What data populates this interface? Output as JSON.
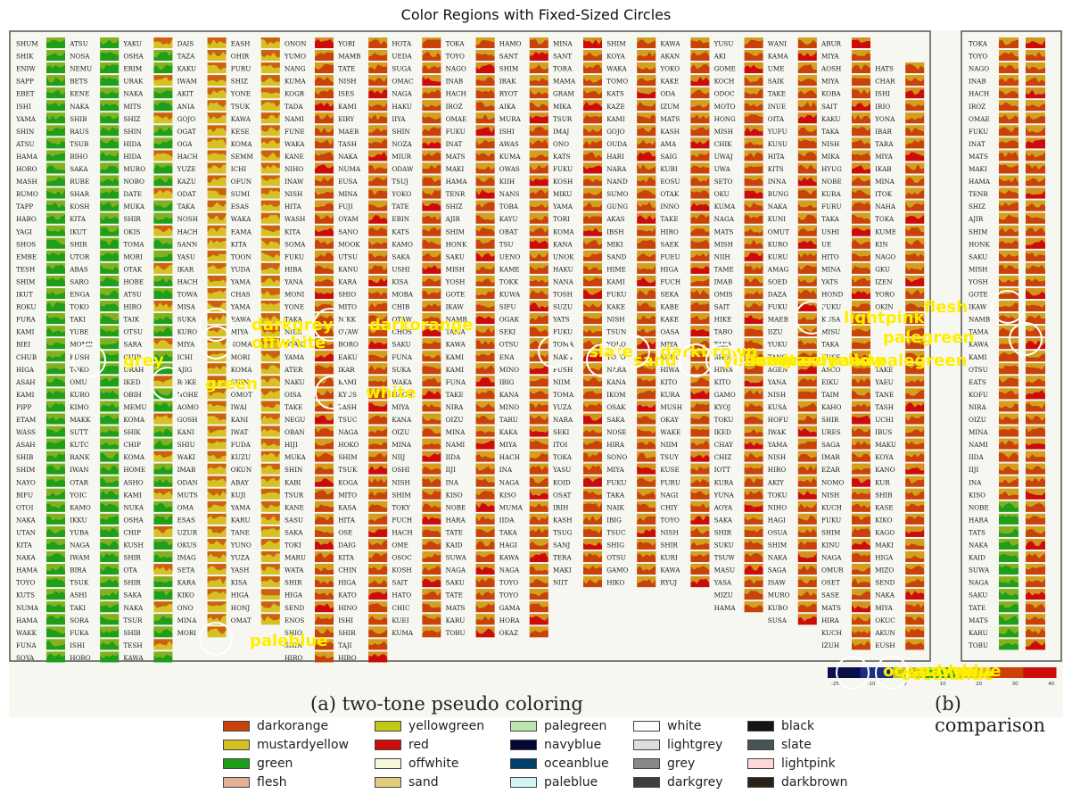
{
  "title": "Color Regions with Fixed-Sized Circles",
  "captions": {
    "left": "(a) two-tone pseudo coloring",
    "right": "(b) comparison"
  },
  "colorbar_ticks": [
    "-25",
    "-10",
    "0",
    "10",
    "20",
    "30",
    "40"
  ],
  "station_columns": [
    [
      "SHUM",
      "SHIK",
      "ENIW",
      "SAPP",
      "EBET",
      "ISHI",
      "YAMA",
      "SHIN",
      "ATSU",
      "HAMA",
      "HORO",
      "MASH",
      "RUMO",
      "TAPP",
      "HABO",
      "YAGI",
      "SHOS",
      "EMBE",
      "TESH",
      "SHIM",
      "IKUT",
      "ROKU",
      "FURA",
      "KAMI",
      "BIEI",
      "CHUB",
      "HIGA",
      "ASAH",
      "KAMI",
      "PIPP",
      "ETAM",
      "WASS",
      "ASAH",
      "SHIB",
      "SHIM",
      "NAYO",
      "BIFU",
      "OTOI",
      "NAKA",
      "UTAN",
      "KITA",
      "NAKA",
      "HAMA",
      "TOYO",
      "KUTS",
      "NUMA",
      "HAMA",
      "WAKK",
      "FUNA",
      "SOYA"
    ],
    [
      "ATSU",
      "NOSA",
      "NEMU",
      "BETS",
      "KENE",
      "NAKA",
      "SHIB",
      "RAUS",
      "TSUB",
      "BIHO",
      "SAKA",
      "RUBE",
      "SHAR",
      "KOSH",
      "KITA",
      "IKUT",
      "SHIR",
      "UTOR",
      "ABAS",
      "SARO",
      "ENGA",
      "TOKO",
      "TAKI",
      "YUBE",
      "MOMB",
      "KUSH",
      "TOKO",
      "OMU",
      "KURO",
      "KIMO",
      "MAKK",
      "SUTT",
      "KUTC",
      "RANK",
      "IWAN",
      "OTAR",
      "YOIC",
      "KAMO",
      "IKKU",
      "YUBA",
      "NAGA",
      "IWAM",
      "BIRA",
      "TSUK",
      "ASHI",
      "TAKI",
      "SORA",
      "FUKA",
      "ISHI",
      "HORO"
    ],
    [
      "YAKU",
      "OSHA",
      "ERIM",
      "URAK",
      "NAKA",
      "MITS",
      "SHIZ",
      "SHIN",
      "HIDA",
      "HIDA",
      "MURO",
      "NOBO",
      "DATE",
      "MUKA",
      "SHIR",
      "OKIS",
      "TOMA",
      "MORI",
      "OTAK",
      "HOBE",
      "ATSU",
      "HIRO",
      "TAIK",
      "OTSU",
      "SARA",
      "CHIP",
      "URAH",
      "IKED",
      "OBIH",
      "MEMU",
      "KOMA",
      "SHIK",
      "CHIP",
      "KOMA",
      "HOME",
      "ASHO",
      "KAMI",
      "NUKA",
      "OSHA",
      "CHIP",
      "KUSH",
      "SHIR",
      "OTA",
      "SHIR",
      "SAKA",
      "NAKA",
      "TSUR",
      "SHIB",
      "TESH",
      "KAWA"
    ],
    [
      "DAIS",
      "TAZA",
      "KAKU",
      "IWAM",
      "AKIT",
      "ANIA",
      "GOJO",
      "OGAT",
      "OGA",
      "HACH",
      "YUZE",
      "KAZU",
      "ODAT",
      "TAKA",
      "NOSH",
      "HACH",
      "SANN",
      "YASU",
      "IKAR",
      "HACH",
      "TOWA",
      "MISA",
      "SUKA",
      "KURO",
      "MIYA",
      "ICHI",
      "AJIG",
      "ROKE",
      "NOHE",
      "AOMO",
      "GOSH",
      "KANI",
      "SHIU",
      "WAKI",
      "IMAB",
      "ODAN",
      "MUTS",
      "OMA",
      "ESAS",
      "UZUR",
      "OKUS",
      "IMAG",
      "SETA",
      "KARA",
      "KIKO",
      "ONO",
      "MINA",
      "MORI"
    ],
    [
      "EASH",
      "OHIR",
      "FURU",
      "SHIZ",
      "YONE",
      "TSUK",
      "KAWA",
      "KESE",
      "KOMA",
      "SEMM",
      "ICHI",
      "OFUN",
      "SUMI",
      "ESAS",
      "WAKA",
      "EAMA",
      "KITA",
      "TOON",
      "YUDA",
      "YAMA",
      "CHAS",
      "YAMA",
      "EAWA",
      "MIYA",
      "KOMA",
      "MORI",
      "KOMA",
      "SHIN",
      "OMOT",
      "IWAI",
      "KANI",
      "IWAT",
      "FUDA",
      "KUZU",
      "OKUN",
      "ABAY",
      "KUJI",
      "YAMA",
      "KARU",
      "TANE",
      "YUNO",
      "YUZA",
      "YASH",
      "KISA",
      "HIGA",
      "HONJ",
      "OMAT"
    ],
    [
      "ONON",
      "YUMO",
      "NANG",
      "KUMA",
      "KOGR",
      "TADA",
      "NAMI",
      "FUNE",
      "WAKA",
      "KANE",
      "NIHO",
      "INAW",
      "NISH",
      "HITA",
      "WASH",
      "KITA",
      "SOMA",
      "FUKU",
      "HIBA",
      "YANA",
      "MONI",
      "YONE",
      "TAKA",
      "NIEK",
      "OTAK",
      "YAMA",
      "ATER",
      "NAKU",
      "OISA",
      "TAKE",
      "NEGU",
      "OBAN",
      "HIJI",
      "MUKA",
      "SHIN",
      "KABI",
      "TSUR",
      "KANE",
      "SASU",
      "SAKA",
      "TOKI",
      "MARU",
      "WATA",
      "SHIR",
      "HIGA",
      "SEND",
      "ENOS",
      "SHIO",
      "SHIN",
      "HIRO"
    ],
    [
      "YORI",
      "MAMB",
      "TATE",
      "NISH",
      "ISES",
      "KAMI",
      "EIRY",
      "MAEB",
      "TASH",
      "NAKA",
      "NUMA",
      "EUSA",
      "MINA",
      "FUJI",
      "OYAM",
      "SANO",
      "MOOK",
      "UTSU",
      "KANU",
      "KARA",
      "SHIO",
      "MITO",
      "NIKK",
      "OTAW",
      "BORO",
      "EAKU",
      "IKAR",
      "KAMI",
      "KYUS",
      "TASH",
      "TSUC",
      "NAGA",
      "HOKO",
      "SHIM",
      "TSUK",
      "KOGA",
      "MITO",
      "KASA",
      "HITA",
      "OSE",
      "DAIG",
      "KITA",
      "CHIN",
      "HIGA",
      "KATO",
      "HINO",
      "ISHI",
      "SHIR",
      "TAJI",
      "HIRO"
    ],
    [
      "HOTA",
      "UEDA",
      "SUGA",
      "OMAC",
      "NAGA",
      "HAKU",
      "IIYA",
      "SHIN",
      "NOZA",
      "MIUR",
      "ODAW",
      "TSUJ",
      "YOKO",
      "TATE",
      "EBIN",
      "KATS",
      "KAMO",
      "SAKA",
      "USHI",
      "KISA",
      "MOBA",
      "CHIB",
      "OTAW",
      "CHOS",
      "SAKU",
      "FUNA",
      "SUKA",
      "WAKA",
      "HACH",
      "MIYA",
      "KANA",
      "OIZU",
      "MINA",
      "NIIJ",
      "OSHI",
      "NISH",
      "SHIM",
      "TOKY",
      "FUCH",
      "HACH",
      "OME",
      "OSOC",
      "KOSH",
      "SAIT",
      "HATO",
      "CHIC",
      "KUEI",
      "KUMA"
    ],
    [
      "TOKA",
      "TOYO",
      "NAGO",
      "INAB",
      "HACH",
      "IROZ",
      "OMAE",
      "FUKU",
      "INAT",
      "MATS",
      "MAKI",
      "HAMA",
      "TENR",
      "SHIZ",
      "AJIR",
      "SHIM",
      "HONK",
      "SAKU",
      "MISH",
      "YOSH",
      "GOTE",
      "IKAW",
      "NAMB",
      "TAMA",
      "KAWA",
      "KAMI",
      "KAMI",
      "FUNA",
      "TAKE",
      "NIRA",
      "OIZU",
      "MINA",
      "NAMI",
      "IIDA",
      "IIJI",
      "INA",
      "KISO",
      "NOBE",
      "HARA",
      "TATE",
      "KAID",
      "SUWA",
      "NAGA",
      "SAKU",
      "TATE",
      "MATS",
      "KARU",
      "TOBU"
    ],
    [
      "HAMO",
      "SANT",
      "SHIM",
      "IRAK",
      "RYOT",
      "AIKA",
      "MURA",
      "ISHI",
      "AWAS",
      "KUMA",
      "OWAS",
      "KIIH",
      "NANS",
      "TOBA",
      "KAYU",
      "OBAT",
      "TSU",
      "UENO",
      "KAME",
      "TOKK",
      "KUWA",
      "SIFU",
      "OGAK",
      "SEKI",
      "OTSU",
      "ENA",
      "MINO",
      "IBIG",
      "KANA",
      "MINO",
      "TARU",
      "KAKA",
      "MIYA",
      "HACH",
      "INA",
      "NAGA",
      "KISO",
      "MUMA",
      "IIDA",
      "TAKA",
      "HAGI",
      "KAWA",
      "NAGA",
      "TOYO",
      "TOYO",
      "GAMA",
      "HORA",
      "OKAZ"
    ],
    [
      "MINA",
      "SANT",
      "TORA",
      "MAMA",
      "GRAM",
      "MIKA",
      "TSUR",
      "IMAJ",
      "ONO",
      "KATS",
      "FUKU",
      "KOSH",
      "MIKU",
      "YAMA",
      "TORI",
      "KOMA",
      "KANA",
      "UNOK",
      "HAKU",
      "NANA",
      "TOSH",
      "SUZU",
      "YATS",
      "FUKU",
      "TOMA",
      "NAKA",
      "FUSH",
      "NIIM",
      "TOMA",
      "YUZA",
      "NARA",
      "SEKI",
      "ITOI",
      "TOKA",
      "YASU",
      "KOID",
      "OSAT",
      "IRIH",
      "KASH",
      "TSUG",
      "SANJ",
      "TERA",
      "MAKI",
      "NIIT"
    ],
    [
      "SHIM",
      "KOYA",
      "WAKA",
      "TOMO",
      "KATS",
      "KAZE",
      "KAMI",
      "GOJO",
      "OUDA",
      "HARI",
      "NARA",
      "NAND",
      "SUMO",
      "GUNG",
      "AKAS",
      "IBSH",
      "MIKI",
      "SAND",
      "HIME",
      "KAMI",
      "FUKU",
      "KAKE",
      "NISH",
      "TSUN",
      "YOKO",
      "TOYO",
      "NARA",
      "KANA",
      "IKOM",
      "OSAK",
      "SAKA",
      "NOSE",
      "HIRA",
      "SONO",
      "MIYA",
      "FUKU",
      "TAKA",
      "NAIK",
      "IBIG",
      "TSUC",
      "SHIG",
      "OTSU",
      "GAMO",
      "HIKO"
    ],
    [
      "KAWA",
      "AKAN",
      "YOKO",
      "KAKE",
      "ODA",
      "IZUM",
      "MATS",
      "KASH",
      "AMA",
      "SAIG",
      "KUBI",
      "EOSU",
      "OTAK",
      "INNO",
      "TAKE",
      "HIRO",
      "SAEK",
      "FUEU",
      "HIGA",
      "FUCH",
      "SEKA",
      "KABE",
      "KAKE",
      "OASA",
      "MIYA",
      "KUDO",
      "HIWA",
      "KITO",
      "KURA",
      "MUSH",
      "OKAY",
      "WAKE",
      "NIIM",
      "TSUY",
      "KUSE",
      "FURU",
      "NAGI",
      "CHIY",
      "TOYO",
      "NISH",
      "SHIR",
      "KURI",
      "KAWA",
      "RYUJ"
    ],
    [
      "YUSU",
      "AKI",
      "GOME",
      "KOCH",
      "ODOC",
      "MOTO",
      "HONG",
      "MISH",
      "CHIK",
      "UWAJ",
      "UWA",
      "SETO",
      "OKU",
      "KUMA",
      "NAGA",
      "MATS",
      "MISH",
      "NIIH",
      "TAME",
      "IMAB",
      "OMIS",
      "SAIT",
      "HIKE",
      "TABO",
      "TAKA",
      "SHIS",
      "HIWA",
      "KITO",
      "GAMO",
      "KYOJ",
      "TOKU",
      "IKED",
      "CHAY",
      "CHIZ",
      "IOTT",
      "KURA",
      "YUNA",
      "AOYA",
      "SAKA",
      "SHIR",
      "SUKU",
      "TSUW",
      "MASU",
      "YASA",
      "MIZU",
      "HAMA"
    ],
    [
      "WANI",
      "KAMA",
      "UME",
      "SAIK",
      "TAKE",
      "INUE",
      "OITA",
      "YUFU",
      "KUSU",
      "HITA",
      "KITS",
      "INNA",
      "BUNG",
      "NAKA",
      "KUNI",
      "OMUT",
      "KURO",
      "KURU",
      "AMAG",
      "SOED",
      "DAZA",
      "FUKU",
      "MAEB",
      "IIZU",
      "YUKU",
      "TANO",
      "AGEN",
      "YANA",
      "NISH",
      "KUSA",
      "HOFU",
      "IWAK",
      "YAMA",
      "NISH",
      "HIRO",
      "AKIY",
      "TOKU",
      "NIHO",
      "HAGI",
      "OSUA",
      "SHIM",
      "NAKA",
      "SAGA",
      "ISAW",
      "MURO",
      "KUBO",
      "SUSA"
    ],
    [
      "ABUR",
      "MIYA",
      "AOSH",
      "MIYA",
      "KOBA",
      "SAIT",
      "KAKU",
      "TAKA",
      "NISH",
      "MIKA",
      "HYUG",
      "NOBE",
      "KURA",
      "FURU",
      "TAKA",
      "USHI",
      "UE",
      "HITO",
      "MINA",
      "YATS",
      "HOND",
      "FUKU",
      "KUSA",
      "MISU",
      "TAKA",
      "KUSE",
      "ASCO",
      "EIKU",
      "TAIM",
      "KAHO",
      "SHIR",
      "URES",
      "SAGA",
      "IMAR",
      "EZAR",
      "NOMO",
      "NISH",
      "KUCH",
      "FUKU",
      "SHIM",
      "KINU",
      "NAGA",
      "OMUR",
      "OSET",
      "SASE",
      "MATS",
      "HIRA",
      "KUCH",
      "IZUH"
    ],
    [
      "",
      "",
      "HATS",
      "CHAR",
      "ISHI",
      "IRIO",
      "YONA",
      "IBAR",
      "TARA",
      "MIYA",
      "IKAB",
      "MINA",
      "ITOK",
      "NAHA",
      "TOKA",
      "KUME",
      "KIN",
      "NAGO",
      "GKU",
      "IZEN",
      "YORO",
      "OKIN",
      "",
      "",
      "",
      "",
      "TAKE",
      "YAEU",
      "TANE",
      "TASH",
      "UCHI",
      "IBUS",
      "MAKU",
      "KOYA",
      "KANO",
      "KUR",
      "SHIB",
      "KASE",
      "KIKO",
      "KAGO",
      "MAKI",
      "HIGA",
      "MIZO",
      "SEND",
      "NAKA",
      "MIYA",
      "OKUC",
      "AKUN",
      "EUSH"
    ]
  ],
  "comparison_column": [
    "TOKA",
    "TOYO",
    "NAGO",
    "INAB",
    "HACH",
    "IROZ",
    "OMAE",
    "FUKU",
    "INAT",
    "MATS",
    "MAKI",
    "HAMA",
    "TENR",
    "SHIZ",
    "AJIR",
    "SHIM",
    "HONK",
    "SAKU",
    "MISH",
    "YOSH",
    "GOTE",
    "IKAW",
    "NAMB",
    "TAMA",
    "KAWA",
    "KAMI",
    "OTSU",
    "EATS",
    "KOFU",
    "NIRA",
    "OIZU",
    "MINA",
    "NAMI",
    "IIDA",
    "IIJI",
    "INA",
    "KISO",
    "NOBE",
    "HARA",
    "TATS",
    "NAKA",
    "KAID",
    "SUWA",
    "NAGA",
    "SAKU",
    "TATE",
    "MATS",
    "KARU",
    "TOBU"
  ],
  "overlay_labels": [
    {
      "text": "darkorange",
      "kind": "circle"
    },
    {
      "text": "darkgrey",
      "kind": "circle"
    },
    {
      "text": "offwhite",
      "kind": "circle"
    },
    {
      "text": "grey",
      "kind": "circle"
    },
    {
      "text": "green",
      "kind": "circle"
    },
    {
      "text": "white",
      "kind": "circle"
    },
    {
      "text": "slate",
      "kind": "circle"
    },
    {
      "text": "sand",
      "kind": "circle"
    },
    {
      "text": "darkbrown",
      "kind": "circle"
    },
    {
      "text": "yellowgreen",
      "kind": "circle"
    },
    {
      "text": "mustardyellow",
      "kind": "circle"
    },
    {
      "text": "lightpink",
      "kind": "circle"
    },
    {
      "text": "flesh",
      "kind": "circle"
    },
    {
      "text": "palegreen",
      "kind": "circle"
    },
    {
      "text": "paleblue",
      "kind": "circle"
    },
    {
      "text": "oceanblue",
      "kind": "circle"
    },
    {
      "text": "navyblue",
      "kind": "circle"
    }
  ],
  "legend": [
    {
      "label": "darkorange",
      "color": "#c8420a"
    },
    {
      "label": "mustardyellow",
      "color": "#d6c023"
    },
    {
      "label": "green",
      "color": "#1f9e1a"
    },
    {
      "label": "flesh",
      "color": "#e2b092"
    },
    {
      "label": "yellowgreen",
      "color": "#c2c818"
    },
    {
      "label": "red",
      "color": "#cc0b0b"
    },
    {
      "label": "offwhite",
      "color": "#f6f7da"
    },
    {
      "label": "sand",
      "color": "#e1cc7e"
    },
    {
      "label": "palegreen",
      "color": "#bde6ad"
    },
    {
      "label": "navyblue",
      "color": "#050834"
    },
    {
      "label": "oceanblue",
      "color": "#02406e"
    },
    {
      "label": "paleblue",
      "color": "#cff6f4"
    },
    {
      "label": "white",
      "color": "#fdfdfd"
    },
    {
      "label": "lightgrey",
      "color": "#dddfdd"
    },
    {
      "label": "grey",
      "color": "#888888"
    },
    {
      "label": "darkgrey",
      "color": "#3e3e3e"
    },
    {
      "label": "black",
      "color": "#141414"
    },
    {
      "label": "slate",
      "color": "#485355"
    },
    {
      "label": "lightpink",
      "color": "#fed8d8"
    },
    {
      "label": "darkbrown",
      "color": "#2a2315"
    }
  ],
  "colors": {
    "overlay_text": "#ffee00",
    "circle": "#ffffff",
    "border": "#555555",
    "station_text": "#1a1a1a",
    "cell_orange": "#c8420a",
    "cell_yellow": "#d6c023",
    "cell_green": "#1f9e1a",
    "cell_red": "#cc0b0b"
  }
}
